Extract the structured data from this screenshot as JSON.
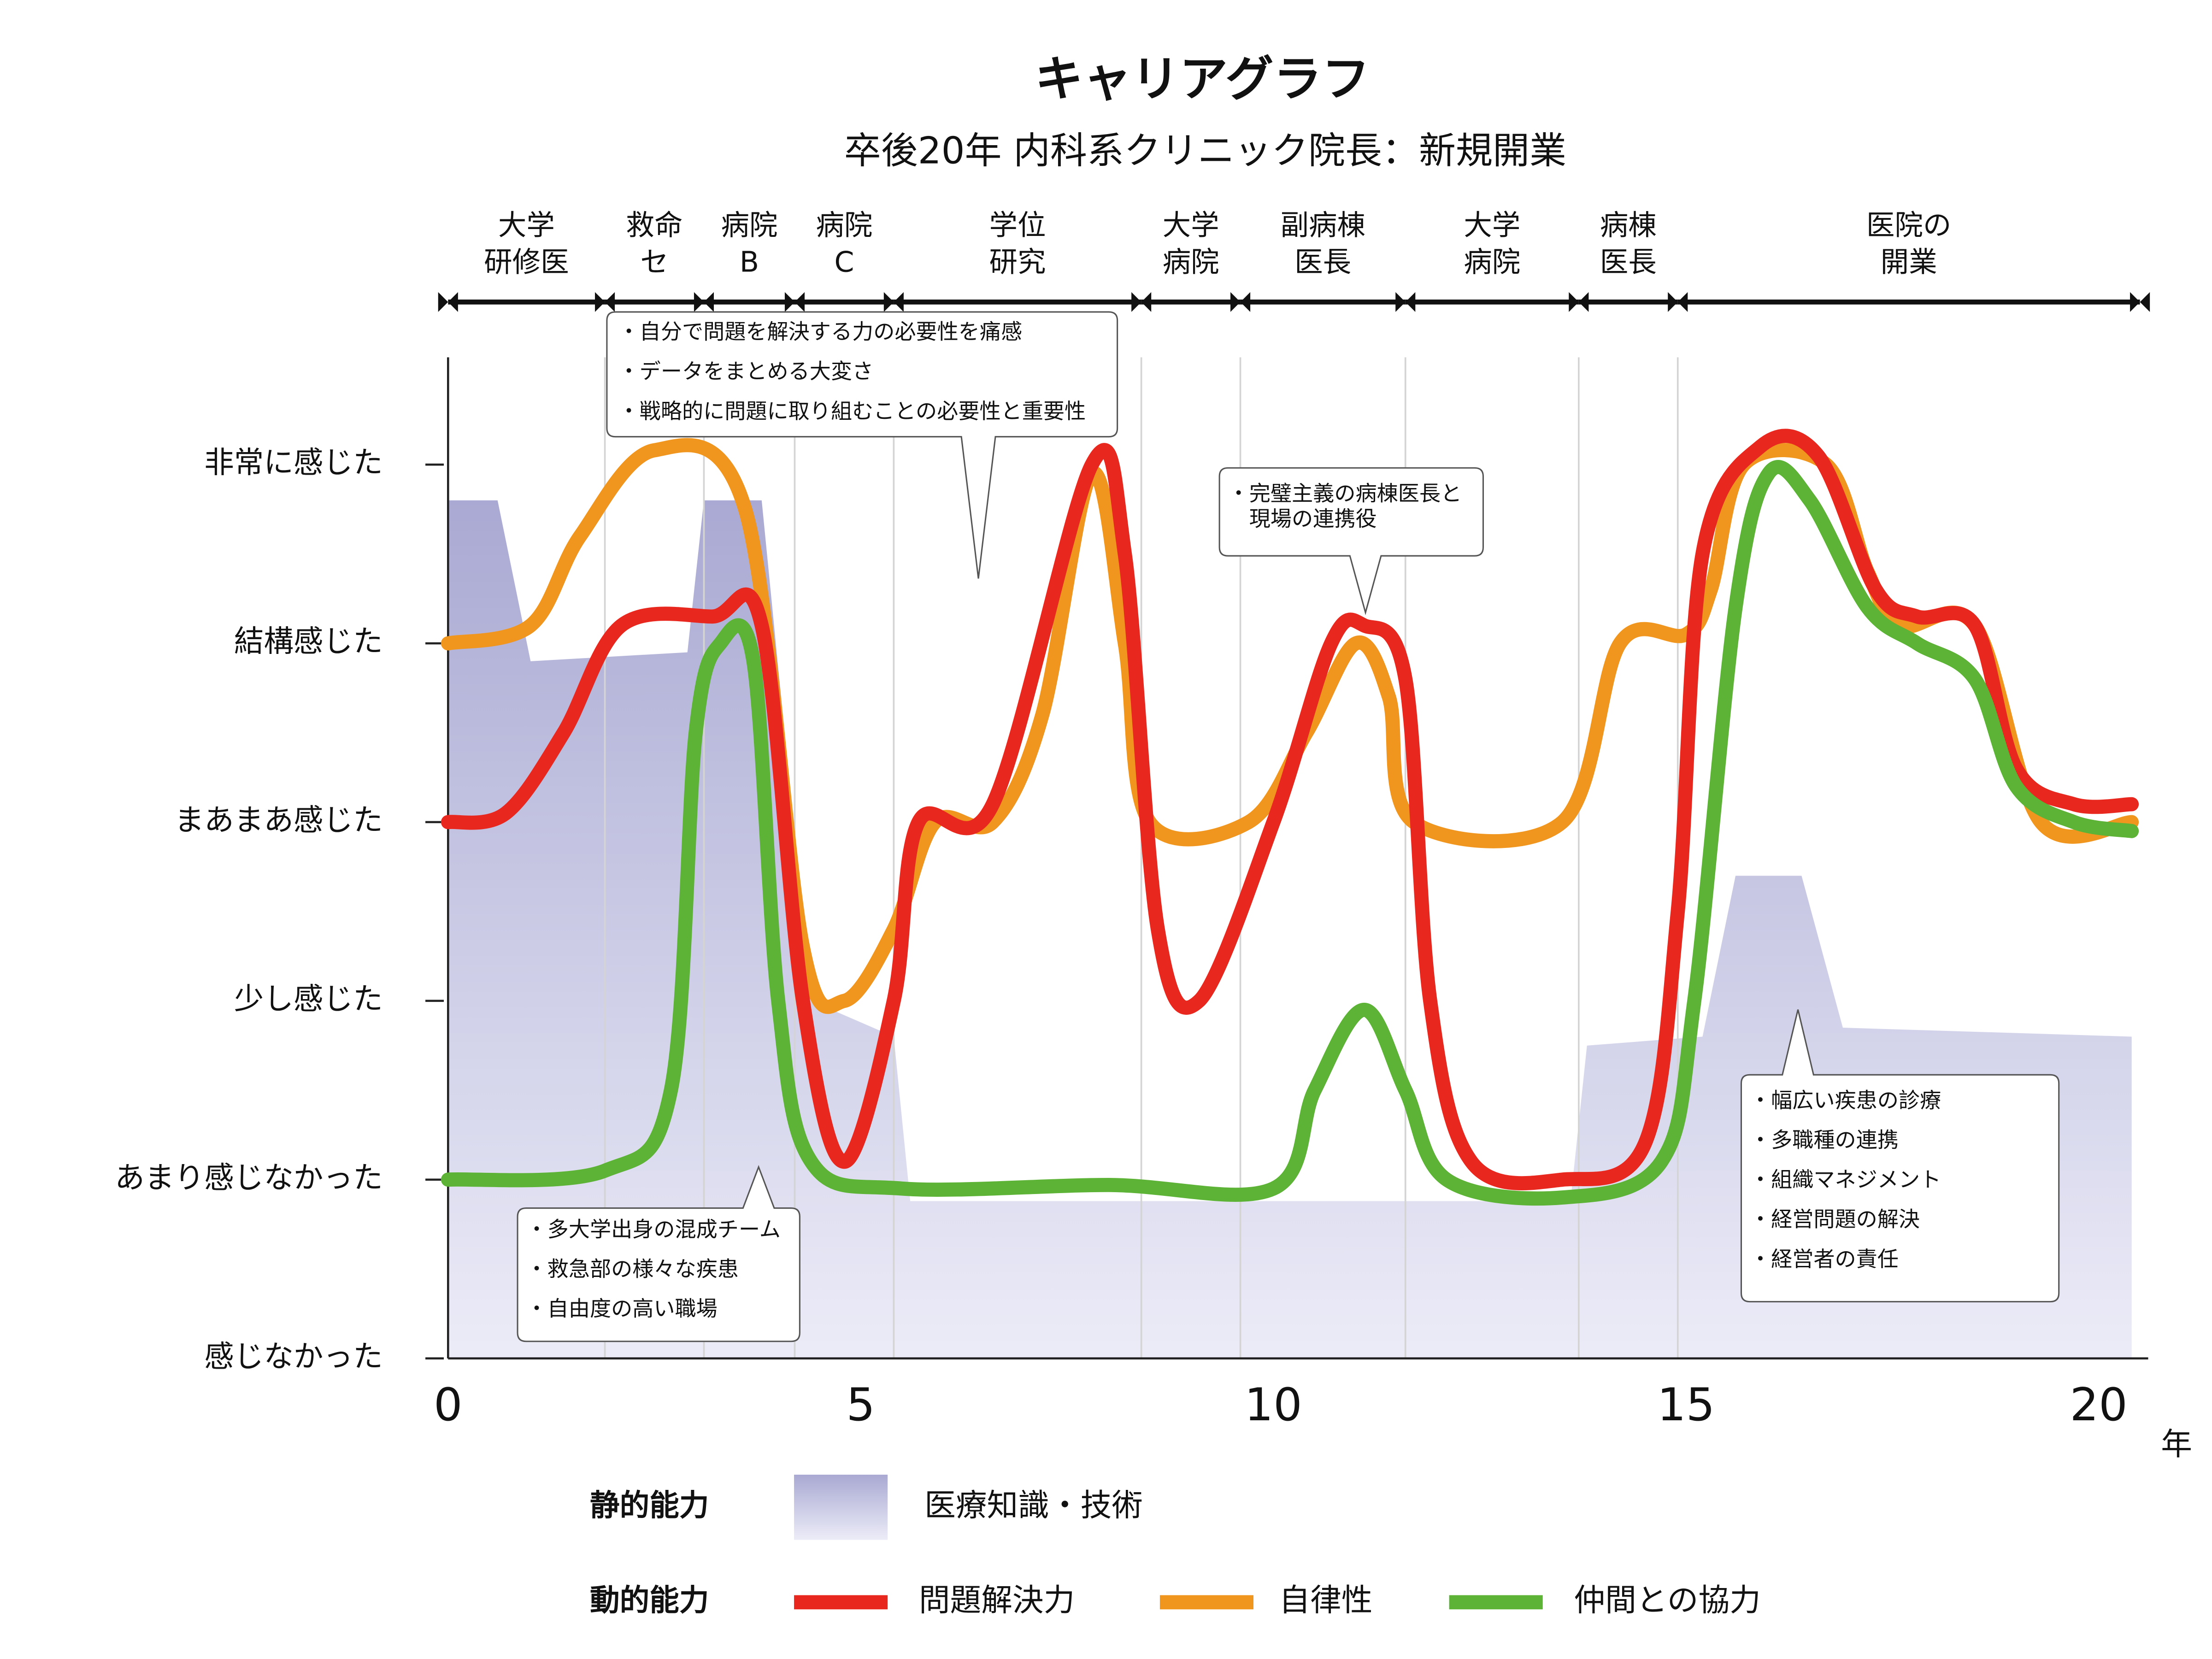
{
  "chart_data": {
    "type": "line",
    "title": "キャリアグラフ",
    "subtitle": "卒後20年 内科系クリニック院長：新規開業",
    "xlabel": "年",
    "xlim": [
      0,
      20.6
    ],
    "xticks": [
      0,
      5,
      10,
      15,
      20
    ],
    "ylim": [
      0,
      5.6
    ],
    "yticks": [
      {
        "value": 0,
        "label": "感じなかった"
      },
      {
        "value": 1,
        "label": "あまり感じなかった"
      },
      {
        "value": 2,
        "label": "少し感じた"
      },
      {
        "value": 3,
        "label": "まあまあ感じた"
      },
      {
        "value": 4,
        "label": "結構感じた"
      },
      {
        "value": 5,
        "label": "非常に感じた"
      }
    ],
    "periods": [
      {
        "lines": [
          "大学",
          "研修医"
        ],
        "start": 0,
        "end": 1.9
      },
      {
        "lines": [
          "救命",
          "セ"
        ],
        "start": 1.9,
        "end": 3.1
      },
      {
        "lines": [
          "病院",
          "B"
        ],
        "start": 3.1,
        "end": 4.2
      },
      {
        "lines": [
          "病院",
          "C"
        ],
        "start": 4.2,
        "end": 5.4
      },
      {
        "lines": [
          "学位",
          "研究"
        ],
        "start": 5.4,
        "end": 8.4
      },
      {
        "lines": [
          "大学",
          "病院"
        ],
        "start": 8.4,
        "end": 9.6
      },
      {
        "lines": [
          "副病棟",
          "医長"
        ],
        "start": 9.6,
        "end": 11.6
      },
      {
        "lines": [
          "大学",
          "病院"
        ],
        "start": 11.6,
        "end": 13.7
      },
      {
        "lines": [
          "病棟",
          "医長"
        ],
        "start": 13.7,
        "end": 14.9
      },
      {
        "lines": [
          "医院の",
          "開業"
        ],
        "start": 14.9,
        "end": 20.5
      }
    ],
    "static_label": "静的能力",
    "dynamic_label": "動的能力",
    "series": [
      {
        "name": "医療知識・技術",
        "type": "area",
        "color": "#aaaad4",
        "x": [
          0,
          0.6,
          1.0,
          2.9,
          3.1,
          3.8,
          4.4,
          5.4,
          5.6,
          13.6,
          13.8,
          15.2,
          15.6,
          16.4,
          16.9,
          20.4
        ],
        "values": [
          4.8,
          4.8,
          3.9,
          3.95,
          4.8,
          4.8,
          2.0,
          1.8,
          0.88,
          0.88,
          1.75,
          1.8,
          2.7,
          2.7,
          1.85,
          1.8
        ]
      },
      {
        "name": "問題解決力",
        "color": "#e8281e",
        "x": [
          0,
          0.7,
          1.4,
          2.1,
          3.2,
          3.8,
          4.3,
          4.8,
          5.4,
          5.7,
          6.6,
          7.8,
          8.2,
          8.6,
          9.1,
          10.0,
          10.7,
          11.1,
          11.6,
          11.9,
          12.4,
          13.5,
          14.5,
          14.9,
          15.2,
          15.9,
          16.6,
          17.3,
          17.8,
          18.5,
          19.0,
          19.7,
          20.4
        ],
        "values": [
          3.0,
          3.05,
          3.5,
          4.1,
          4.15,
          4.1,
          2.0,
          1.1,
          2.0,
          3.0,
          3.1,
          5.0,
          4.5,
          2.4,
          2.0,
          3.0,
          4.0,
          4.1,
          3.8,
          2.0,
          1.1,
          1.0,
          1.2,
          2.5,
          4.5,
          5.1,
          5.05,
          4.3,
          4.15,
          4.1,
          3.3,
          3.1,
          3.1
        ]
      },
      {
        "name": "自律性",
        "color": "#f0961e",
        "x": [
          0,
          1.0,
          1.6,
          2.5,
          3.6,
          4.3,
          4.8,
          5.4,
          5.9,
          6.6,
          7.2,
          7.8,
          8.2,
          8.5,
          9.7,
          10.4,
          11.0,
          11.4,
          11.7,
          13.5,
          14.2,
          15.0,
          15.3,
          15.7,
          16.7,
          17.2,
          17.6,
          18.5,
          19.3,
          20.4
        ],
        "values": [
          4.0,
          4.1,
          4.6,
          5.08,
          4.75,
          2.3,
          2.0,
          2.4,
          3.0,
          3.0,
          3.6,
          4.95,
          4.0,
          3.0,
          3.0,
          3.5,
          4.0,
          3.7,
          3.0,
          3.0,
          4.0,
          4.05,
          4.3,
          5.0,
          5.0,
          4.4,
          4.1,
          4.1,
          3.0,
          3.0
        ]
      },
      {
        "name": "仲間との協力",
        "color": "#5db336",
        "x": [
          0,
          1.9,
          2.7,
          3.0,
          3.3,
          3.7,
          4.0,
          4.4,
          5.5,
          8.0,
          10.0,
          10.5,
          11.1,
          11.6,
          12.1,
          13.5,
          14.7,
          15.1,
          15.6,
          16.0,
          16.5,
          17.2,
          17.8,
          18.5,
          19.0,
          19.7,
          20.4
        ],
        "values": [
          1.0,
          1.05,
          1.5,
          3.5,
          4.0,
          3.9,
          2.0,
          1.1,
          0.95,
          0.97,
          0.95,
          1.5,
          1.95,
          1.5,
          1.0,
          0.9,
          1.1,
          2.0,
          4.2,
          4.95,
          4.8,
          4.2,
          4.0,
          3.8,
          3.2,
          3.0,
          2.95
        ]
      }
    ],
    "annotations": [
      {
        "lines": [
          "・自分で問題を解決する力の必要性を痛感",
          "・データをまとめる大変さ",
          "・戦略的に問題に取り組むことの必要性と重要性"
        ]
      },
      {
        "lines": [
          "・完璧主義の病棟医長と",
          "　現場の連携役"
        ]
      },
      {
        "lines": [
          "・多大学出身の混成チーム",
          "・救急部の様々な疾患",
          "・自由度の高い職場"
        ]
      },
      {
        "lines": [
          "・幅広い疾患の診療",
          "・多職種の連携",
          "・組織マネジメント",
          "・経営問題の解決",
          "・経営者の責任"
        ]
      }
    ]
  }
}
